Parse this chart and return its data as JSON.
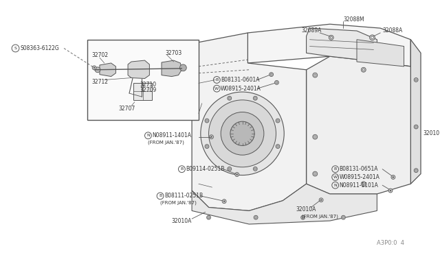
{
  "bg_color": "#ffffff",
  "line_color": "#555555",
  "text_color": "#333333",
  "fig_width": 6.4,
  "fig_height": 3.72,
  "footer_text": "A3P0:0  4",
  "parts": {
    "s_label": "S08363-6122G",
    "label_32088M": "32088M",
    "label_32089A": "32089A",
    "label_32088A_left": "32088A",
    "label_32088A_right": "32088A",
    "label_32703": "32703",
    "label_32710": "32710",
    "label_32709": "32709",
    "label_32712": "32712",
    "label_32702": "32702",
    "label_32707": "32707",
    "label_b_0601": "B08131-0601A",
    "label_w_2401_top": "W08915-2401A",
    "label_32010_right": "32010",
    "label_n_1401": "N08911-1401A",
    "label_n_1401_sub": "(FROM JAN.'87)",
    "label_b_0251B": "B09114-0251B",
    "label_b_0251B2": "B08111-0251B",
    "label_b_0251B2_sub": "(FROM JAN.'87)",
    "label_32010A_bot": "32010A",
    "label_b_0651": "B08131-0651A",
    "label_w_2401_bot": "W08915-2401A",
    "label_n_1101": "N08911-1101A",
    "label_32010A_right": "32010A",
    "label_32010A_right_sub": "(FROM JAN.'87)"
  }
}
